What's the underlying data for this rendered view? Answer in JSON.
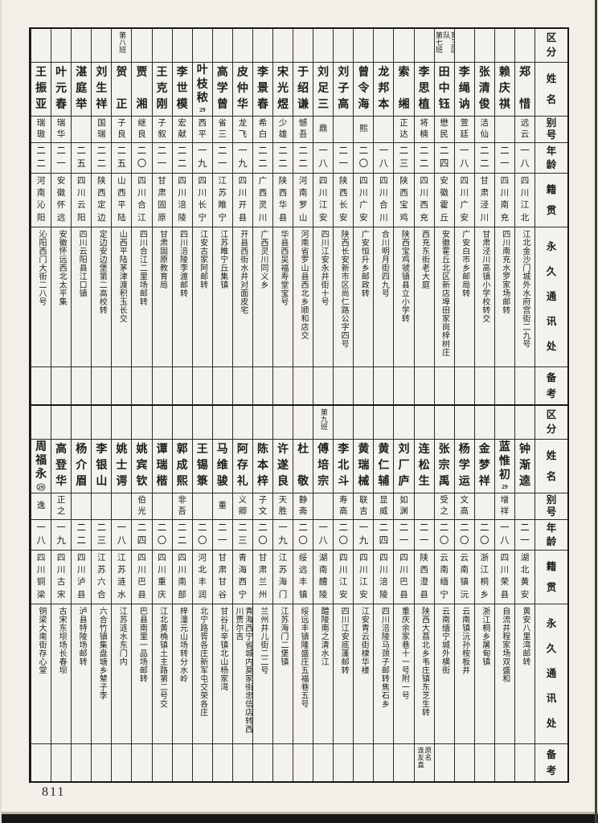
{
  "page": {
    "number": "811"
  },
  "row_headers": {
    "region": "区分",
    "name": "姓名",
    "alias": "别号",
    "age": "年龄",
    "native_place": "籍贯",
    "address": "永久通讯处",
    "remarks": "备考"
  },
  "top_table": {
    "people": [
      {
        "name": "郑惜",
        "alias": "远云",
        "age": "一八",
        "native": "四川江北",
        "address": "江北金沙门城外水府宫街二九号",
        "region": "",
        "mark": "",
        "remark": ""
      },
      {
        "name": "赖庆祺",
        "alias": "",
        "age": "二一",
        "native": "四川南充",
        "address": "四川南充水罗家场邮转",
        "region": "",
        "mark": "",
        "remark": ""
      },
      {
        "name": "张清俊",
        "alias": "洁仙",
        "age": "二二",
        "native": "甘肃泾川",
        "address": "甘肃泾川高镇小学校转交",
        "region": "",
        "mark": "",
        "remark": ""
      },
      {
        "name": "李绳讷",
        "alias": "萱廷",
        "age": "一八",
        "native": "四川广安",
        "address": "广安白市乡邮局转",
        "region": "",
        "mark": "",
        "remark": ""
      },
      {
        "name": "田中钰",
        "alias": "懋民",
        "age": "二四",
        "native": "安徽霍丘",
        "address": "安徽霍丘北区新店埠田家岗梓树庄",
        "region": "第三区队\n第七班",
        "mark": "",
        "remark": ""
      },
      {
        "name": "李思植",
        "alias": "将楠",
        "age": "二二",
        "native": "四川西充",
        "address": "西充东街老大庭",
        "region": "",
        "mark": "",
        "remark": ""
      },
      {
        "name": "索缃",
        "alias": "正达",
        "age": "二三",
        "native": "陕西宝鸡",
        "address": "陕西宝鸡虢镇县立小学转",
        "region": "",
        "mark": "",
        "remark": ""
      },
      {
        "name": "龙邦本",
        "alias": "",
        "age": "一八",
        "native": "四川合川",
        "address": "合川明月街四九号",
        "region": "",
        "mark": "",
        "remark": ""
      },
      {
        "name": "曾令海",
        "alias": "熙",
        "age": "二〇",
        "native": "四川广安",
        "address": "广安恒升乡邮政转",
        "region": "",
        "mark": "",
        "remark": ""
      },
      {
        "name": "刘子高",
        "alias": "",
        "age": "二一",
        "native": "陕西长安",
        "address": "陕西长安新市区尚仁路公字四号",
        "region": "",
        "mark": "",
        "remark": ""
      },
      {
        "name": "刘足三",
        "alias": "鼎",
        "age": "一八",
        "native": "四川江安",
        "address": "四川江安永井街十号",
        "region": "",
        "mark": "",
        "remark": ""
      },
      {
        "name": "于绍谦",
        "alias": "憾吾",
        "age": "二二",
        "native": "河南罗山",
        "address": "河南省罗山县西北乡顺和店交",
        "region": "",
        "mark": "",
        "remark": ""
      },
      {
        "name": "宋光煜",
        "alias": "少雄",
        "age": "二二",
        "native": "陕西华县",
        "address": "华县西吴福寿堂宝号",
        "region": "",
        "mark": "",
        "remark": ""
      },
      {
        "name": "李景春",
        "alias": "希白",
        "age": "二二",
        "native": "广西灵川",
        "address": "广西灵川同义乡",
        "region": "",
        "mark": "",
        "remark": ""
      },
      {
        "name": "皮仲华",
        "alias": "龙飞",
        "age": "一九",
        "native": "四川开县",
        "address": "开县西街水井对面皮宅",
        "region": "",
        "mark": "",
        "remark": ""
      },
      {
        "name": "高学曾",
        "alias": "省三",
        "age": "二一",
        "native": "江苏睢宁",
        "address": "江苏睢宁丘集镇",
        "region": "",
        "mark": "",
        "remark": ""
      },
      {
        "name": "叶枝秾",
        "alias": "西平",
        "age": "一九",
        "native": "四川长宁",
        "address": "江安古家阿邮转",
        "region": "",
        "mark": "29",
        "remark": ""
      },
      {
        "name": "李世模",
        "alias": "宏献",
        "age": "二二",
        "native": "四川涪陵",
        "address": "四川涪陵李渡邮转",
        "region": "",
        "mark": "",
        "remark": ""
      },
      {
        "name": "王克刚",
        "alias": "子叙",
        "age": "二一",
        "native": "甘肃固原",
        "address": "甘肃固原教育局",
        "region": "",
        "mark": "",
        "remark": ""
      },
      {
        "name": "贾湘",
        "alias": "继良",
        "age": "二〇",
        "native": "四川合江",
        "address": "四川合江二里场邮转",
        "region": "",
        "mark": "",
        "remark": ""
      },
      {
        "name": "贺正",
        "alias": "子良",
        "age": "二五",
        "native": "山西平陆",
        "address": "山西平陆茅津渡积玉长交",
        "region": "第八班",
        "mark": "",
        "remark": ""
      },
      {
        "name": "刘生祥",
        "alias": "国瑞",
        "age": "二二",
        "native": "陕西定边",
        "address": "定边安边堡第二高校转",
        "region": "",
        "mark": "",
        "remark": ""
      },
      {
        "name": "湛庭举",
        "alias": "",
        "age": "二五",
        "native": "四川云阳",
        "address": "四川云阳县江口镇",
        "region": "",
        "mark": "",
        "remark": ""
      },
      {
        "name": "叶元春",
        "alias": "瑞华",
        "age": "二一",
        "native": "安徽怀远",
        "address": "安徽怀远西北太平集",
        "region": "",
        "mark": "",
        "remark": ""
      },
      {
        "name": "王振亚",
        "alias": "瑞璈",
        "age": "二二",
        "native": "河南沁阳",
        "address": "沁阳西门大街二八号",
        "region": "",
        "mark": "",
        "remark": ""
      }
    ]
  },
  "bottom_table": {
    "people": [
      {
        "name": "钟渐逵",
        "alias": "",
        "age": "二一",
        "native": "湖北黄安",
        "address": "黄安八里湾邮转",
        "region": "",
        "mark": "",
        "remark": ""
      },
      {
        "name": "蓝惟初",
        "alias": "增祥",
        "age": "一八",
        "native": "四川荣县",
        "address": "自流井程家场双盛和",
        "region": "",
        "mark": "29",
        "remark": ""
      },
      {
        "name": "金梦祥",
        "alias": "",
        "age": "二〇",
        "native": "浙江桐乡",
        "address": "浙江桐乡屠甸镇",
        "region": "",
        "mark": "",
        "remark": ""
      },
      {
        "name": "杨学运",
        "alias": "文高",
        "age": "二〇",
        "native": "云南镇沅",
        "address": "云南镇沅孙桉板井",
        "region": "",
        "mark": "",
        "remark": ""
      },
      {
        "name": "张宗禹",
        "alias": "受之",
        "age": "二〇",
        "native": "云南缅宁",
        "address": "云南缅宁城外横街",
        "region": "",
        "mark": "",
        "remark": ""
      },
      {
        "name": "连松生",
        "alias": "",
        "age": "二一",
        "native": "陕西澄县",
        "address": "陕西大荔北乡韦庄镇东芝生转",
        "region": "",
        "mark": "",
        "remark": "原名\n连友直"
      },
      {
        "name": "刘厂庐",
        "alias": "如渊",
        "age": "二一",
        "native": "四川巴县",
        "address": "重庆余家巷十一号附一号",
        "region": "",
        "mark": "",
        "remark": ""
      },
      {
        "name": "黄仁辅",
        "alias": "显威",
        "age": "二四",
        "native": "四川涪陵",
        "address": "四川涪陵马颈子邮转焦石乡",
        "region": "",
        "mark": "",
        "remark": ""
      },
      {
        "name": "黄瑞械",
        "alias": "联吉",
        "age": "一九",
        "native": "四川江安",
        "address": "江安青云街棣华楼",
        "region": "",
        "mark": "",
        "remark": ""
      },
      {
        "name": "李北斗",
        "alias": "寿高",
        "age": "二〇",
        "native": "四川江安",
        "address": "四川江安底蓬邮转",
        "region": "",
        "mark": "",
        "remark": ""
      },
      {
        "name": "傅培宗",
        "alias": "",
        "age": "一八",
        "native": "湖南醴陵",
        "address": "醴陵南之清水江",
        "region": "第九班",
        "mark": "",
        "remark": ""
      },
      {
        "name": "杜敬",
        "alias": "静斋",
        "age": "二〇",
        "native": "绥远丰镇",
        "address": "绥远丰镇隆盛庄五福巷五号",
        "region": "",
        "mark": "",
        "remark": ""
      },
      {
        "name": "许遂良",
        "alias": "天胜",
        "age": "一九",
        "native": "江苏海门",
        "address": "江苏海门二堡镇",
        "region": "",
        "mark": "",
        "remark": ""
      },
      {
        "name": "陈本梓",
        "alias": "子文",
        "age": "二〇",
        "native": "甘肃兰州",
        "address": "兰州井儿街二二号",
        "region": "",
        "mark": "",
        "remark": ""
      },
      {
        "name": "阿存礼",
        "alias": "义卿",
        "age": "二三",
        "native": "青海西宁",
        "address": "青海西宁省城内莫家街忠信店转西川贾尔吉",
        "region": "",
        "mark": "",
        "remark": ""
      },
      {
        "name": "马维骏",
        "alias": "重",
        "age": "二一",
        "native": "甘肃甘谷",
        "address": "甘谷礼辛镇北山杨家湾",
        "region": "",
        "mark": "",
        "remark": ""
      },
      {
        "name": "王锡箓",
        "alias": "",
        "age": "二〇",
        "native": "河北丰润",
        "address": "北宁路胥各庄新军屯交荣各庄",
        "region": "",
        "mark": "",
        "remark": ""
      },
      {
        "name": "郭成熙",
        "alias": "非吾",
        "age": "二二",
        "native": "四川南部",
        "address": "梓潼元山场转分水岭",
        "region": "",
        "mark": "",
        "remark": ""
      },
      {
        "name": "谭瑞楷",
        "alias": "",
        "age": "二〇",
        "native": "四川重庆",
        "address": "江北黄桷镇土主路第二号交",
        "region": "",
        "mark": "",
        "remark": ""
      },
      {
        "name": "姚宾钦",
        "alias": "伯光",
        "age": "二四",
        "native": "四川巴县",
        "address": "巴县南里一品场邮转",
        "region": "",
        "mark": "",
        "remark": ""
      },
      {
        "name": "姚士谔",
        "alias": "",
        "age": "一八",
        "native": "江苏涟水",
        "address": "江苏涟水东门内",
        "region": "",
        "mark": "",
        "remark": ""
      },
      {
        "name": "李银山",
        "alias": "",
        "age": "二三",
        "native": "江苏六合",
        "address": "六合竹镇集盘塘乡辇子李",
        "region": "",
        "mark": "",
        "remark": ""
      },
      {
        "name": "杨介眉",
        "alias": "",
        "age": "二二",
        "native": "四川泸县",
        "address": "泸县特陵场邮转",
        "region": "",
        "mark": "",
        "remark": ""
      },
      {
        "name": "高登华",
        "alias": "正之",
        "age": "一九",
        "native": "四川古宋",
        "address": "古宋东坝场长春坝",
        "region": "",
        "mark": "",
        "remark": ""
      },
      {
        "name": "周福永",
        "alias": "逸",
        "age": "一八",
        "native": "四川铜梁",
        "address": "铜梁大南街存心堂",
        "region": "",
        "mark": "29",
        "mark_circled": true,
        "remark": ""
      }
    ]
  }
}
